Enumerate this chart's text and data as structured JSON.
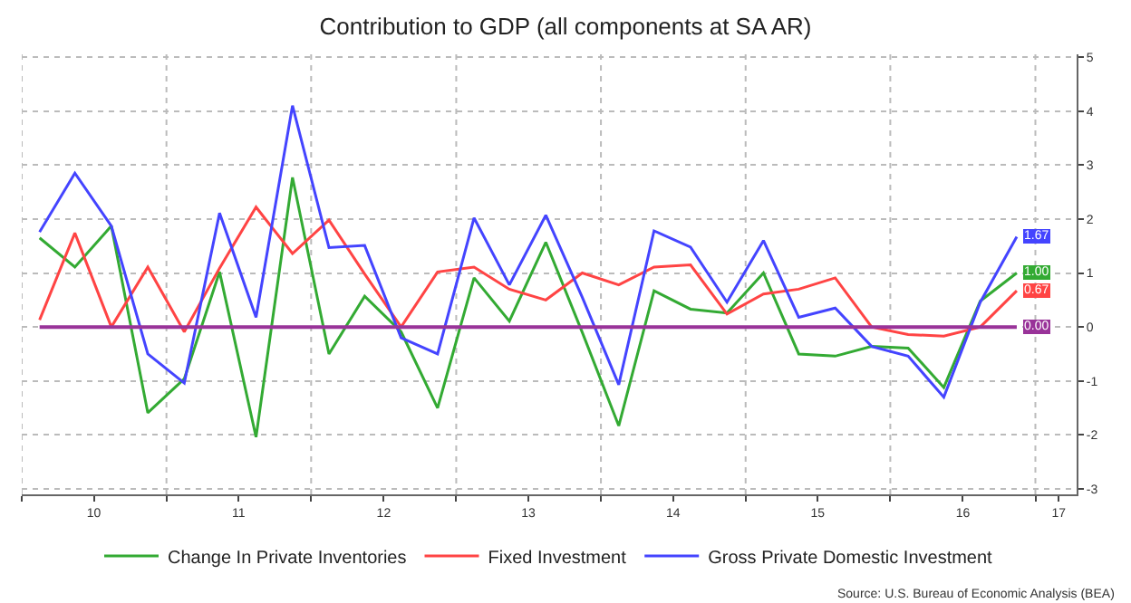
{
  "chart_data": {
    "type": "line",
    "title": "Contribution to GDP (all components at SA AR)",
    "x": [
      "2010-02-15",
      "2010-05-15",
      "2010-08-15",
      "2010-11-15",
      "2011-02-15",
      "2011-05-15",
      "2011-08-15",
      "2011-11-15",
      "2012-02-15",
      "2012-05-15",
      "2012-08-15",
      "2012-11-15",
      "2013-02-15",
      "2013-05-15",
      "2013-08-15",
      "2013-11-15",
      "2014-02-15",
      "2014-05-15",
      "2014-08-15",
      "2014-11-15",
      "2015-02-15",
      "2015-05-15",
      "2015-08-15",
      "2015-11-15",
      "2016-02-15",
      "2016-05-15",
      "2016-08-15",
      "2016-11-15"
    ],
    "series": [
      {
        "name": "Change In Private Inventories",
        "color": "#33aa33",
        "values": [
          1.65,
          1.11,
          1.87,
          -1.59,
          -0.96,
          1.02,
          -2.04,
          2.77,
          -0.5,
          0.57,
          -0.09,
          -1.5,
          0.91,
          0.11,
          1.57,
          -0.1,
          -1.83,
          0.67,
          0.33,
          0.26,
          1.0,
          -0.5,
          -0.54,
          -0.36,
          -0.39,
          -1.12,
          0.48,
          1.0
        ],
        "value_labels": [
          null,
          null,
          null,
          null,
          null,
          null,
          null,
          null,
          null,
          null,
          null,
          null,
          null,
          null,
          null,
          null,
          null,
          null,
          null,
          null,
          null,
          null,
          null,
          null,
          null,
          null,
          null,
          "1.00"
        ]
      },
      {
        "name": "Fixed Investment",
        "color": "#ff4444",
        "values": [
          0.13,
          1.74,
          0,
          1.11,
          -0.09,
          1.09,
          2.22,
          1.36,
          1.98,
          0.98,
          0,
          1.02,
          1.11,
          0.7,
          0.5,
          1.0,
          0.78,
          1.11,
          1.15,
          0.24,
          0.61,
          0.7,
          0.91,
          0,
          -0.14,
          -0.17,
          0,
          0.67
        ],
        "value_labels": [
          null,
          null,
          null,
          null,
          null,
          null,
          null,
          null,
          null,
          null,
          null,
          null,
          null,
          null,
          null,
          null,
          null,
          null,
          null,
          null,
          null,
          null,
          null,
          null,
          null,
          null,
          null,
          "0.67"
        ]
      },
      {
        "name": "Gross Private Domestic Investment",
        "color": "#4444ff",
        "values": [
          1.76,
          2.85,
          1.87,
          -0.5,
          -1.04,
          2.11,
          0.18,
          4.1,
          1.47,
          1.51,
          -0.2,
          -0.5,
          2.02,
          0.78,
          2.07,
          0.55,
          -1.07,
          1.78,
          1.48,
          0.46,
          1.6,
          0.18,
          0.35,
          -0.36,
          -0.54,
          -1.3,
          0.46,
          1.67
        ],
        "value_labels": [
          null,
          null,
          null,
          null,
          null,
          null,
          null,
          null,
          null,
          null,
          null,
          null,
          null,
          null,
          null,
          null,
          null,
          null,
          null,
          null,
          null,
          null,
          null,
          null,
          null,
          null,
          null,
          "1.67"
        ]
      }
    ],
    "ref_lines": [
      {
        "axis": "y",
        "value": 0,
        "label": "0.00",
        "color": "#993399"
      }
    ],
    "xlim": [
      "2010-01-01",
      "2017-04-15"
    ],
    "xticks": [
      {
        "value": "2010-01-01",
        "label": null
      },
      {
        "value": "2010-07-02",
        "label": "10"
      },
      {
        "value": "2011-01-01",
        "label": null
      },
      {
        "value": "2011-07-02",
        "label": "11"
      },
      {
        "value": "2012-01-01",
        "label": null
      },
      {
        "value": "2012-07-02",
        "label": "12"
      },
      {
        "value": "2013-01-01",
        "label": null
      },
      {
        "value": "2013-07-02",
        "label": "13"
      },
      {
        "value": "2014-01-01",
        "label": null
      },
      {
        "value": "2014-07-02",
        "label": "14"
      },
      {
        "value": "2015-01-01",
        "label": null
      },
      {
        "value": "2015-07-02",
        "label": "15"
      },
      {
        "value": "2016-01-01",
        "label": null
      },
      {
        "value": "2016-07-02",
        "label": "16"
      },
      {
        "value": "2017-01-01",
        "label": null
      },
      {
        "value": "2017-03-01",
        "label": "17"
      }
    ],
    "ylim": [
      -3.1,
      5.05
    ],
    "yticks": [
      -3,
      -2,
      -1,
      0,
      1,
      2,
      3,
      4,
      5
    ],
    "grid": true,
    "legend": "bottom",
    "marker": "none",
    "line_style": "solid",
    "annotations": [
      "Source: U.S. Bureau of Economic Analysis (BEA)"
    ]
  }
}
